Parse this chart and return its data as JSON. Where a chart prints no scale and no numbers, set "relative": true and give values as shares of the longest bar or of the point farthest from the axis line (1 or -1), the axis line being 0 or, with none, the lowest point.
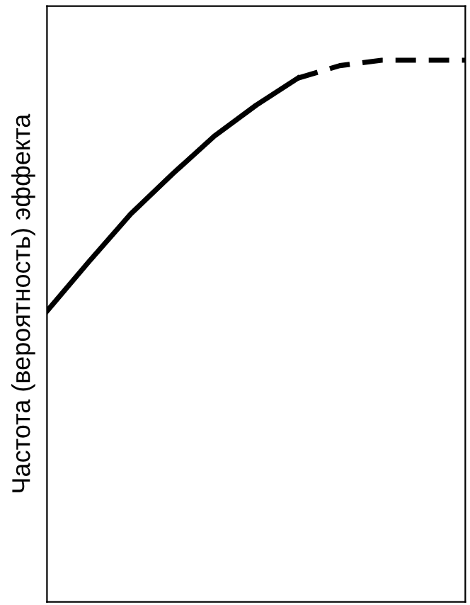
{
  "chart_data": {
    "type": "line",
    "relative": true,
    "ylabel": "Частота (вероятность) эффекта",
    "categories": [
      null,
      null,
      null,
      null,
      null,
      null,
      null,
      null,
      null,
      null,
      null
    ],
    "series": [
      {
        "color": "#000000",
        "line_style": "solid",
        "values": [
          0.537,
          0.628,
          0.716,
          0.79,
          0.86,
          0.917,
          0.967,
          null,
          null,
          null,
          null
        ]
      },
      {
        "color": "#000000",
        "line_style": "dashed",
        "values": [
          null,
          null,
          null,
          null,
          null,
          null,
          0.967,
          0.99,
          1,
          1,
          1
        ]
      }
    ],
    "marker": "none"
  }
}
